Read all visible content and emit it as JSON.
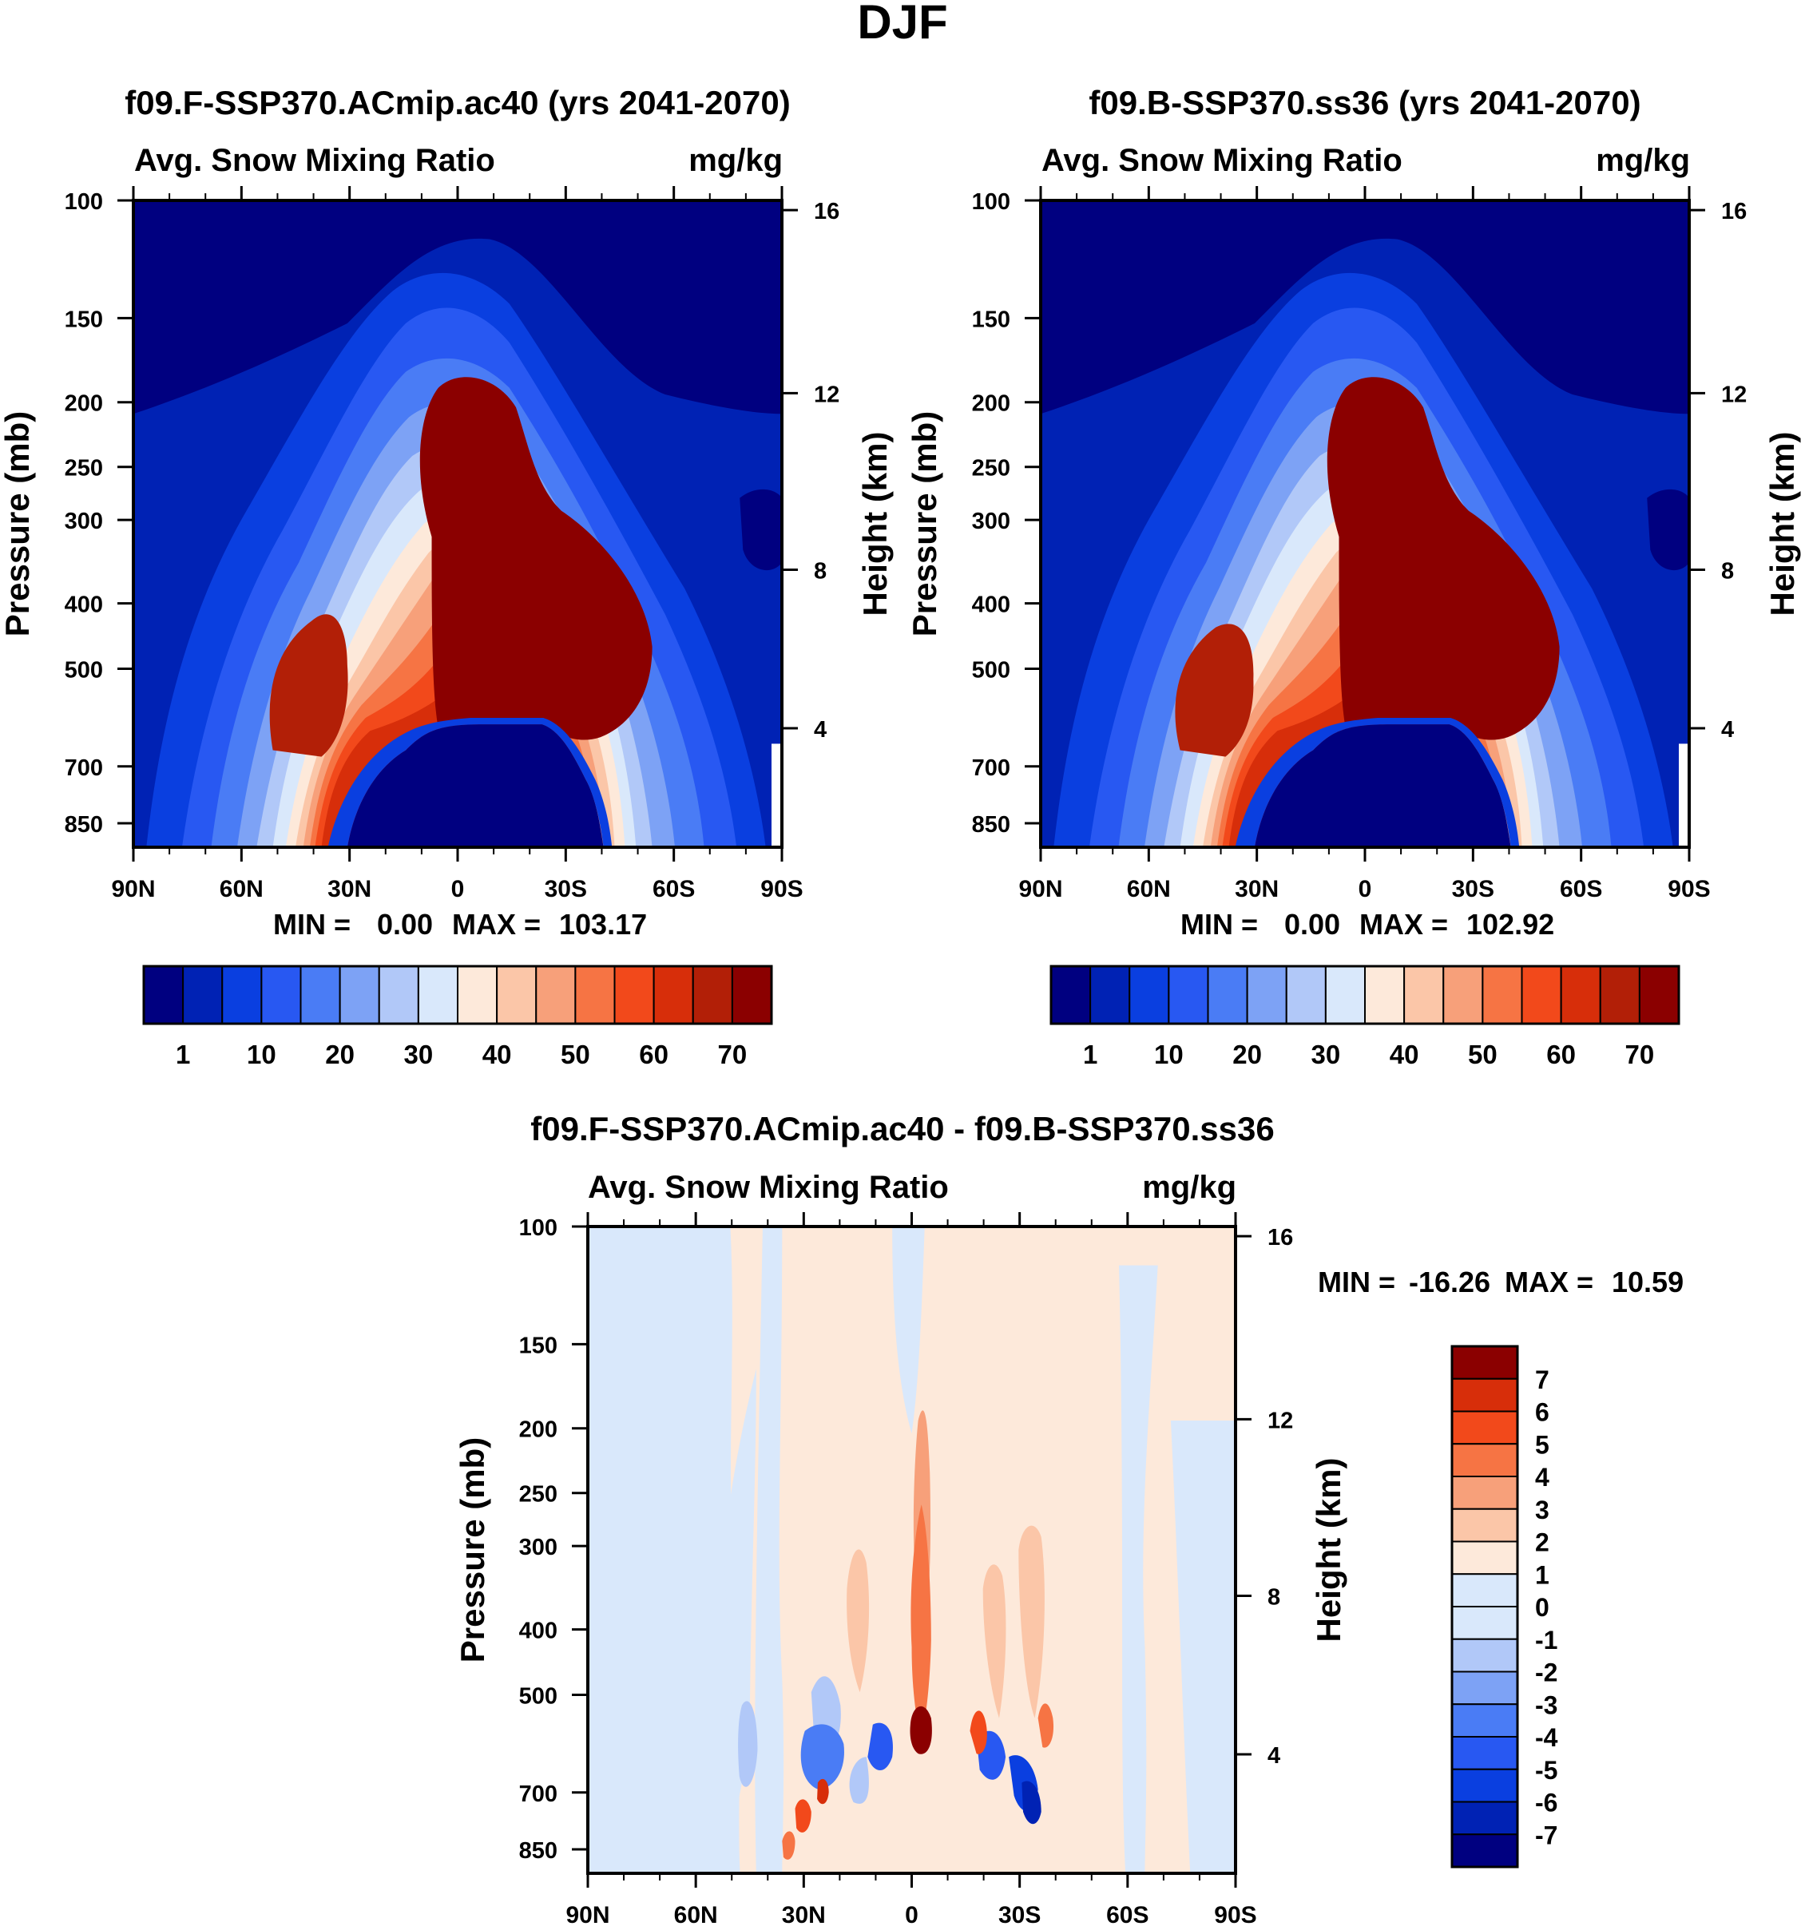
{
  "figure": {
    "season": "DJF",
    "colors": {
      "abs_palette": [
        "#000080",
        "#0022b4",
        "#0a3fe0",
        "#2858f2",
        "#4a7cf5",
        "#7da2f5",
        "#b1c8f8",
        "#d9e8fb",
        "#fde9da",
        "#fbc6a8",
        "#f7a07a",
        "#f67444",
        "#f2491b",
        "#d72e0a",
        "#b21f07",
        "#8b0000"
      ],
      "diff_palette": [
        "#000080",
        "#0022b4",
        "#0a3fe0",
        "#2858f2",
        "#4a7cf5",
        "#7da2f5",
        "#b1c8f8",
        "#d9e8fb",
        "#fde9da",
        "#fbc6a8",
        "#f7a07a",
        "#f67444",
        "#f2491b",
        "#d72e0a",
        "#8b0000"
      ]
    }
  },
  "chart_data": [
    {
      "id": "panel-a",
      "type": "heatmap",
      "title": "f09.F-SSP370.ACmip.ac40 (yrs 2041-2070)",
      "left_label": "Avg. Snow Mixing Ratio",
      "units": "mg/kg",
      "ylabel": "Pressure (mb)",
      "y2label": "Height (km)",
      "x_ticks": [
        "90N",
        "60N",
        "30N",
        "0",
        "30S",
        "60S",
        "90S"
      ],
      "y_ticks": [
        "100",
        "150",
        "200",
        "250",
        "300",
        "400",
        "500",
        "700",
        "850"
      ],
      "y2_ticks": [
        "16",
        "12",
        "8",
        "4"
      ],
      "stats": {
        "min_label": "MIN =",
        "min": "0.00",
        "max_label": "MAX =",
        "max": "103.17"
      },
      "colorbar_labels": [
        "1",
        "10",
        "20",
        "30",
        "40",
        "50",
        "60",
        "70"
      ],
      "variant": "ac"
    },
    {
      "id": "panel-b",
      "type": "heatmap",
      "title": "f09.B-SSP370.ss36 (yrs 2041-2070)",
      "left_label": "Avg. Snow Mixing Ratio",
      "units": "mg/kg",
      "ylabel": "Pressure (mb)",
      "y2label": "Height (km)",
      "x_ticks": [
        "90N",
        "60N",
        "30N",
        "0",
        "30S",
        "60S",
        "90S"
      ],
      "y_ticks": [
        "100",
        "150",
        "200",
        "250",
        "300",
        "400",
        "500",
        "700",
        "850"
      ],
      "y2_ticks": [
        "16",
        "12",
        "8",
        "4"
      ],
      "stats": {
        "min_label": "MIN =",
        "min": "0.00",
        "max_label": "MAX =",
        "max": "102.92"
      },
      "colorbar_labels": [
        "1",
        "10",
        "20",
        "30",
        "40",
        "50",
        "60",
        "70"
      ],
      "variant": "ss"
    },
    {
      "id": "panel-diff",
      "type": "heatmap",
      "title": "f09.F-SSP370.ACmip.ac40 - f09.B-SSP370.ss36",
      "left_label": "Avg. Snow Mixing Ratio",
      "units": "mg/kg",
      "ylabel": "Pressure (mb)",
      "y2label": "Height (km)",
      "x_ticks": [
        "90N",
        "60N",
        "30N",
        "0",
        "30S",
        "60S",
        "90S"
      ],
      "y_ticks": [
        "100",
        "150",
        "200",
        "250",
        "300",
        "400",
        "500",
        "700",
        "850"
      ],
      "y2_ticks": [
        "16",
        "12",
        "8",
        "4"
      ],
      "stats": {
        "min_label": "MIN =",
        "min": "-16.26",
        "max_label": "MAX =",
        "max": "10.59"
      },
      "colorbar_labels": [
        "7",
        "6",
        "5",
        "4",
        "3",
        "2",
        "1",
        "0",
        "-1",
        "-2",
        "-3",
        "-4",
        "-5",
        "-6",
        "-7"
      ]
    }
  ]
}
